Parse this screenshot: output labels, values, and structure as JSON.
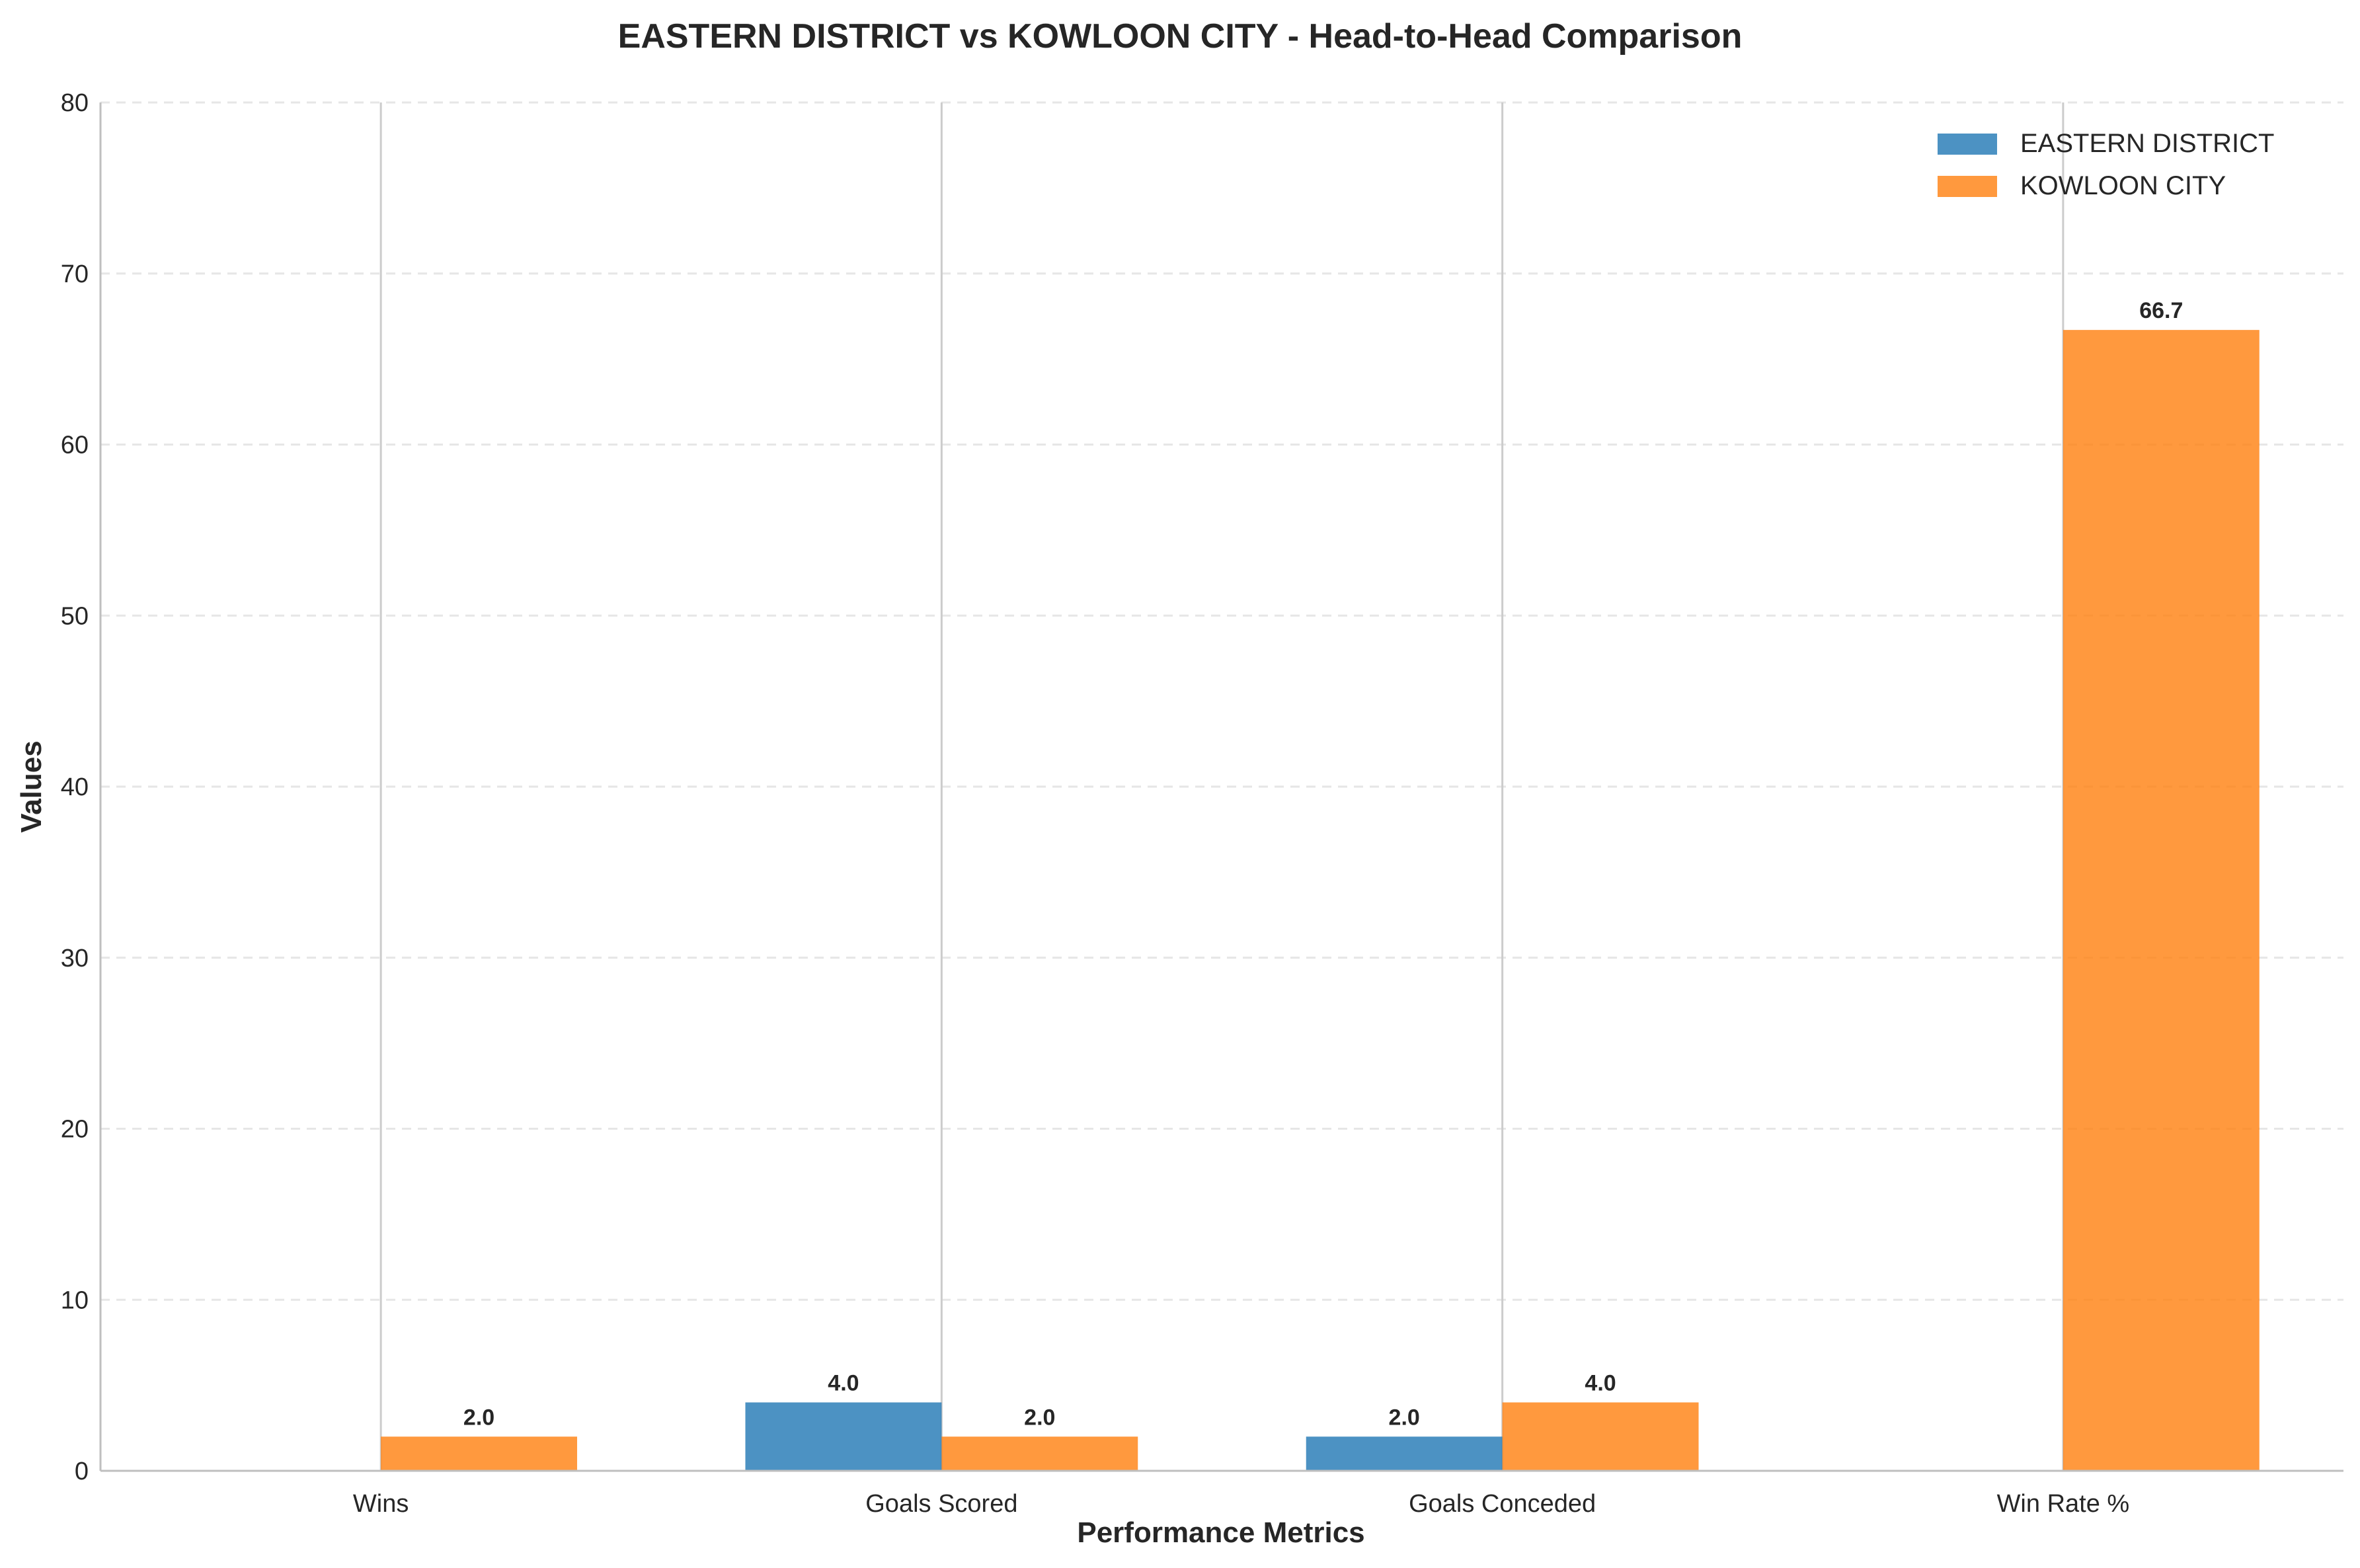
{
  "chart_data": {
    "type": "bar",
    "title": "EASTERN DISTRICT vs KOWLOON CITY - Head-to-Head Comparison",
    "xlabel": "Performance Metrics",
    "ylabel": "Values",
    "categories": [
      "Wins",
      "Goals Scored",
      "Goals Conceded",
      "Win Rate %"
    ],
    "series": [
      {
        "name": "EASTERN DISTRICT",
        "color": "#1f77b4",
        "values": [
          0.0,
          4.0,
          2.0,
          0.0
        ]
      },
      {
        "name": "KOWLOON CITY",
        "color": "#ff7f0e",
        "values": [
          2.0,
          2.0,
          4.0,
          66.7
        ]
      }
    ],
    "ylim": [
      0,
      80
    ],
    "yticks": [
      0,
      10,
      20,
      30,
      40,
      50,
      60,
      70,
      80
    ],
    "grid": "y dashed",
    "legend": "top-right",
    "value_labels": true
  }
}
